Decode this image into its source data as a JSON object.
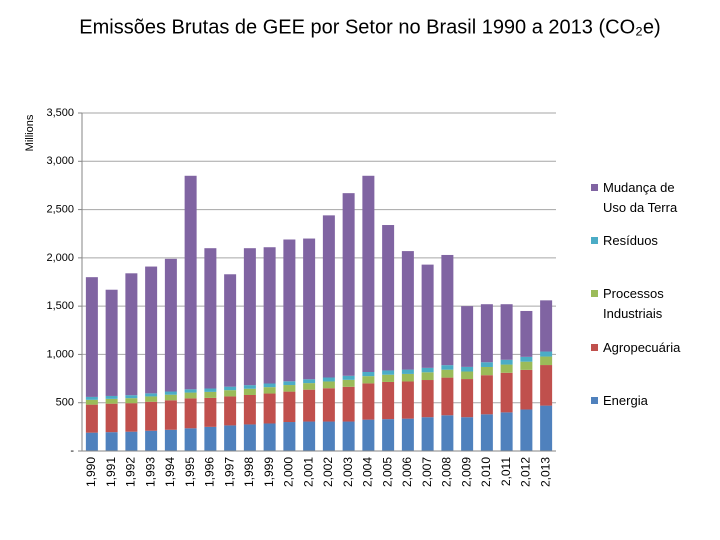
{
  "chart_data": {
    "type": "stacked_bar",
    "title": "Emissões Brutas de GEE por Setor no Brasil 1990 a 2013 (CO₂e)",
    "y_label": "Millions",
    "categories": [
      "1,990",
      "1,991",
      "1,992",
      "1,993",
      "1,994",
      "1,995",
      "1,996",
      "1,997",
      "1,998",
      "1,999",
      "2,000",
      "2,001",
      "2,002",
      "2,003",
      "2,004",
      "2,005",
      "2,006",
      "2,007",
      "2,008",
      "2,009",
      "2,010",
      "2,011",
      "2,012",
      "2,013"
    ],
    "series": [
      {
        "name": "Energia",
        "color": "#4f81bd",
        "values": [
          190,
          195,
          200,
          210,
          220,
          235,
          250,
          265,
          275,
          285,
          300,
          305,
          305,
          305,
          325,
          330,
          335,
          350,
          370,
          350,
          380,
          400,
          430,
          470
        ]
      },
      {
        "name": "Agropecuária",
        "color": "#c0504d",
        "values": [
          290,
          295,
          295,
          300,
          305,
          310,
          300,
          300,
          305,
          310,
          315,
          330,
          345,
          360,
          375,
          385,
          385,
          385,
          390,
          395,
          405,
          410,
          410,
          420
        ]
      },
      {
        "name": "Processos Industriais",
        "color": "#9bbb59",
        "values": [
          50,
          50,
          52,
          55,
          58,
          60,
          62,
          65,
          65,
          66,
          68,
          68,
          70,
          72,
          75,
          75,
          78,
          80,
          82,
          78,
          85,
          85,
          85,
          88
        ]
      },
      {
        "name": "Resíduos",
        "color": "#4bacc6",
        "values": [
          30,
          30,
          31,
          32,
          33,
          34,
          35,
          36,
          37,
          38,
          39,
          40,
          41,
          42,
          43,
          44,
          45,
          46,
          47,
          48,
          49,
          50,
          50,
          52
        ]
      },
      {
        "name": "Mudança de Uso da Terra",
        "color": "#8064a2",
        "values": [
          1240,
          1100,
          1262,
          1313,
          1374,
          2211,
          1453,
          1164,
          1418,
          1411,
          1468,
          1457,
          1679,
          1891,
          2032,
          1506,
          1227,
          1069,
          1141,
          629,
          601,
          575,
          475,
          530
        ]
      }
    ],
    "ylim": [
      0,
      3500
    ],
    "yticks": [
      {
        "value": 0,
        "label": "-"
      },
      500,
      {
        "value": 1000,
        "label": "1,000"
      },
      {
        "value": 1500,
        "label": "1,500"
      },
      {
        "value": 2000,
        "label": "2,000"
      },
      {
        "value": 2500,
        "label": "2,500"
      },
      {
        "value": 3000,
        "label": "3,000"
      },
      {
        "value": 3500,
        "label": "3,500"
      }
    ],
    "grid": true
  }
}
